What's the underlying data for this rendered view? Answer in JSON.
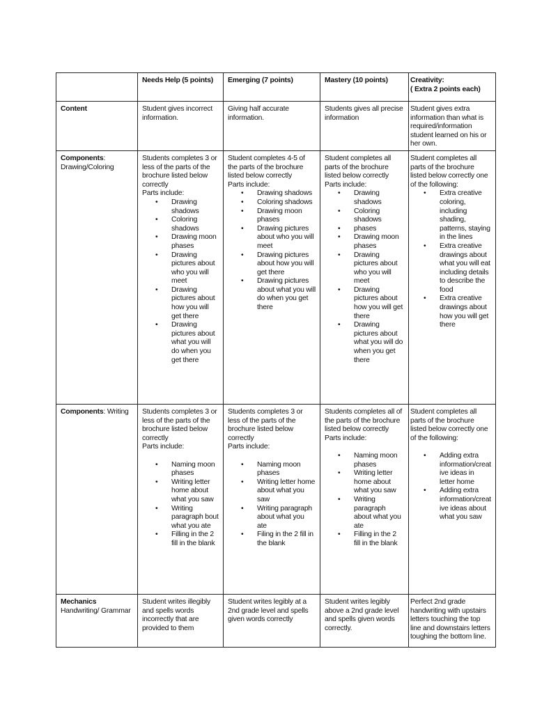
{
  "header": [
    "",
    "Needs Help (5 points)",
    "Emerging (7 points)",
    "Mastery (10 points)",
    "Creativity:\n( Extra 2 points each)"
  ],
  "rows": [
    {
      "label_bold": "Content",
      "label_rest": "",
      "cells": [
        {
          "text": "Student gives incorrect information.",
          "items": []
        },
        {
          "text": "Giving half accurate information.",
          "items": []
        },
        {
          "text": "Students gives all precise information",
          "items": []
        },
        {
          "text": "Student gives extra information than what is required/information student learned on his or her own.",
          "items": []
        }
      ]
    },
    {
      "label_bold": "Components",
      "label_rest": ": Drawing/Coloring",
      "cells": [
        {
          "text": "Students completes 3 or less of the parts of the brochure listed below correctly\nParts include:",
          "gap": false,
          "items": [
            "Drawing shadows",
            "Coloring shadows",
            "Drawing moon phases",
            "Drawing pictures about who you will meet",
            "Drawing pictures about how you will get there",
            "Drawing pictures about what you will do when you get there"
          ]
        },
        {
          "text": "Student completes 4-5 of the parts of the brochure listed below correctly\nParts include:",
          "gap": false,
          "items": [
            "Drawing shadows",
            "Coloring shadows",
            "Drawing moon phases",
            "Drawing pictures about who you will meet",
            "Drawing pictures about how you will get there",
            "Drawing pictures about what you will do when you get there"
          ]
        },
        {
          "text": "Student completes all parts of the brochure listed below correctly\nParts include:",
          "gap": false,
          "items": [
            "Drawing shadows",
            "Coloring shadows",
            "phases",
            "Drawing moon phases",
            "Drawing pictures about who you will meet",
            "Drawing pictures about how you will get there",
            "Drawing pictures about what you will do when you get there"
          ]
        },
        {
          "text": "Student completes all parts of the brochure listed below correctly one of the following:",
          "gap": false,
          "items": [
            "Extra creative coloring, including shading, patterns, staying in the lines",
            "Extra creative drawings about what you will eat including details to describe the food",
            "Extra creative drawings about how you will get there"
          ]
        }
      ]
    },
    {
      "label_bold": "Components",
      "label_rest": ": Writing",
      "cells": [
        {
          "text": "Students completes 3 or less of the parts of the brochure listed below correctly\nParts include:",
          "gap": true,
          "items": [
            "Naming moon phases",
            "Writing letter home about what you saw",
            "Writing paragraph bout what you ate",
            "Filling in the 2 fill in the blank"
          ]
        },
        {
          "text": "Students completes 3 or less of the parts of the brochure listed below correctly\nParts include:",
          "gap": true,
          "items": [
            "Naming moon phases",
            "Writing letter home about what you saw",
            "Writing paragraph about what you ate",
            "Filing in the 2 fill in the blank"
          ]
        },
        {
          "text": "Students completes all of the parts of the brochure listed below correctly\nParts include:",
          "gap": true,
          "items": [
            "Naming moon phases",
            "Writing letter home about what you saw",
            "Writing paragraph about what you ate",
            "Filling in the 2 fill in the blank"
          ]
        },
        {
          "text": "Student completes all parts of the brochure listed below correctly one of the following:",
          "gap": true,
          "items": [
            "Adding extra information/creative ideas in letter home",
            "Adding extra information/creative ideas about what you saw"
          ]
        }
      ]
    },
    {
      "label_bold": "Mechanics",
      "label_rest": "\nHandwriting/ Grammar",
      "cells": [
        {
          "text": "Student writes illegibly and spells words incorrectly that are provided to them",
          "items": []
        },
        {
          "text": "Student writes legibly at a 2nd grade level and spells given words correctly",
          "items": []
        },
        {
          "text": "Student writes legibly above a 2nd grade level and spells given words correctly.",
          "items": []
        },
        {
          "text": "Perfect 2nd grade handwriting with upstairs letters touching the top line and downstairs letters toughing the bottom line.",
          "items": []
        }
      ]
    }
  ]
}
